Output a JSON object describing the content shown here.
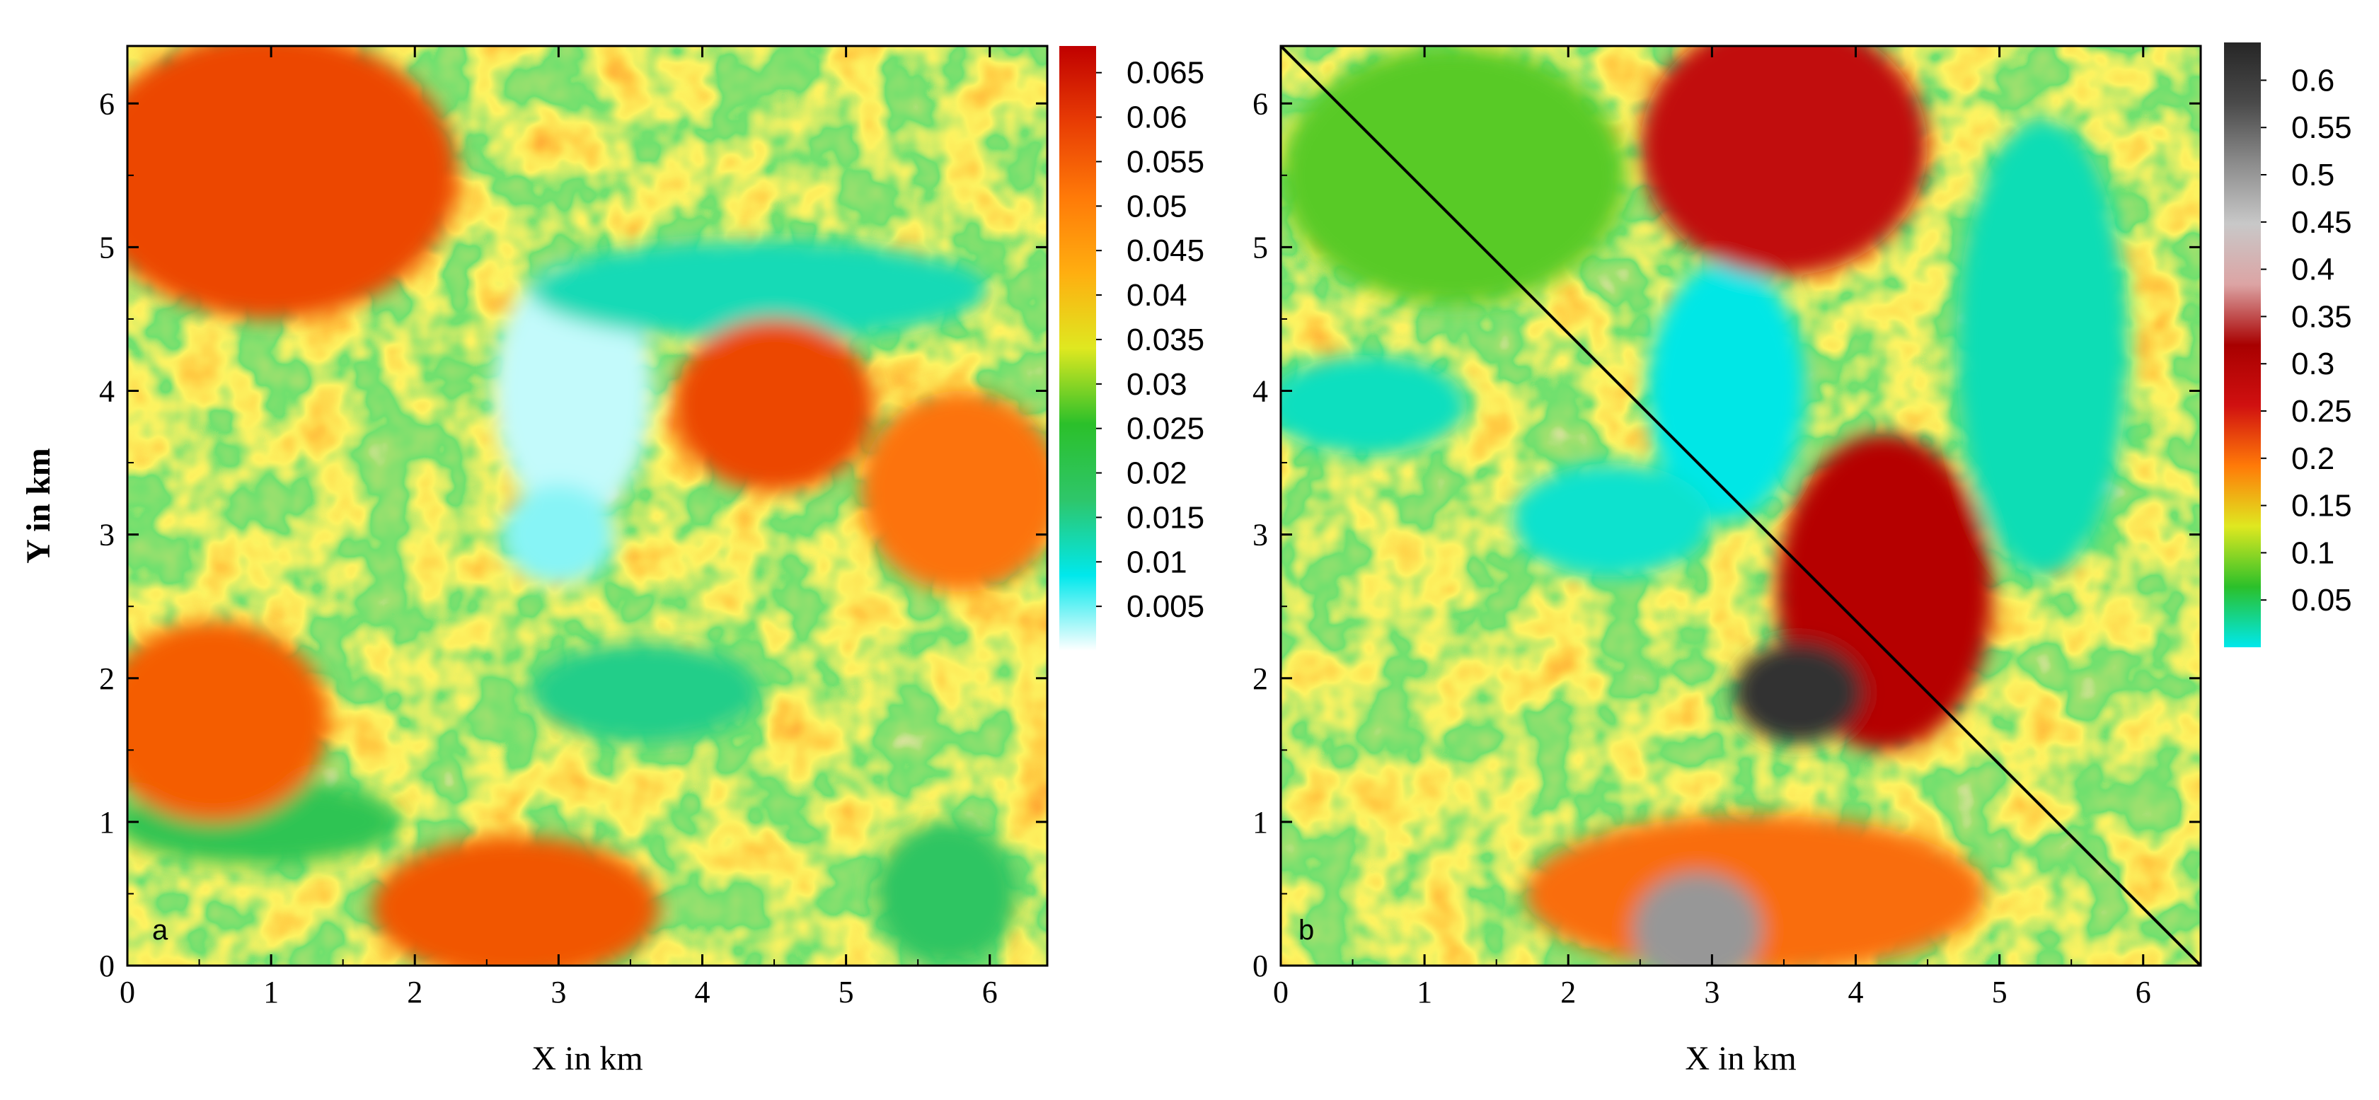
{
  "chart_data": [
    {
      "type": "heatmap",
      "panel_label": "a",
      "xlabel": "X in km",
      "ylabel": "Y in km",
      "xlim": [
        0,
        6.4
      ],
      "ylim": [
        0,
        6.4
      ],
      "x_ticks": [
        "0",
        "1",
        "2",
        "3",
        "4",
        "5",
        "6"
      ],
      "y_ticks": [
        "0",
        "1",
        "2",
        "3",
        "4",
        "5",
        "6"
      ],
      "colorbar": {
        "range": [
          0,
          0.068
        ],
        "tick_labels": [
          "0.065",
          "0.06",
          "0.055",
          "0.05",
          "0.045",
          "0.04",
          "0.035",
          "0.03",
          "0.025",
          "0.02",
          "0.015",
          "0.01",
          "0.005"
        ],
        "tick_values": [
          0.065,
          0.06,
          0.055,
          0.05,
          0.045,
          0.04,
          0.035,
          0.03,
          0.025,
          0.02,
          0.015,
          0.01,
          0.005
        ],
        "colors": [
          "#ffffff",
          "#00e8ec",
          "#2ec66a",
          "#2bc02a",
          "#dfe820",
          "#ffae10",
          "#ff7a08",
          "#e83c04",
          "#c00000"
        ]
      },
      "features": [
        {
          "kind": "low",
          "x": 3.1,
          "y": 4.0,
          "rx": 0.55,
          "ry": 0.9,
          "value": 0.002
        },
        {
          "kind": "low",
          "x": 3.0,
          "y": 3.0,
          "rx": 0.4,
          "ry": 0.35,
          "value": 0.004
        },
        {
          "kind": "low",
          "x": 4.4,
          "y": 4.7,
          "rx": 1.6,
          "ry": 0.35,
          "value": 0.012
        },
        {
          "kind": "low",
          "x": 3.6,
          "y": 1.9,
          "rx": 0.8,
          "ry": 0.35,
          "value": 0.015
        },
        {
          "kind": "low",
          "x": 0.9,
          "y": 1.0,
          "rx": 1.0,
          "ry": 0.3,
          "value": 0.02
        },
        {
          "kind": "low",
          "x": 5.7,
          "y": 0.5,
          "rx": 0.5,
          "ry": 0.5,
          "value": 0.018
        },
        {
          "kind": "high",
          "x": 1.0,
          "y": 5.5,
          "rx": 1.3,
          "ry": 1.0,
          "value": 0.058
        },
        {
          "kind": "high",
          "x": 4.5,
          "y": 3.9,
          "rx": 0.7,
          "ry": 0.6,
          "value": 0.058
        },
        {
          "kind": "high",
          "x": 0.6,
          "y": 1.7,
          "rx": 0.8,
          "ry": 0.7,
          "value": 0.055
        },
        {
          "kind": "high",
          "x": 2.7,
          "y": 0.4,
          "rx": 1.0,
          "ry": 0.5,
          "value": 0.056
        },
        {
          "kind": "high",
          "x": 5.8,
          "y": 3.3,
          "rx": 0.7,
          "ry": 0.7,
          "value": 0.052
        }
      ]
    },
    {
      "type": "heatmap",
      "panel_label": "b",
      "xlabel": "X in km",
      "ylabel": "",
      "xlim": [
        0,
        6.4
      ],
      "ylim": [
        0,
        6.4
      ],
      "x_ticks": [
        "0",
        "1",
        "2",
        "3",
        "4",
        "5",
        "6"
      ],
      "y_ticks": [
        "0",
        "1",
        "2",
        "3",
        "4",
        "5",
        "6"
      ],
      "diagonal_line": {
        "from": [
          0,
          6.4
        ],
        "to": [
          6.4,
          0
        ],
        "color": "#000000"
      },
      "colorbar": {
        "range": [
          0,
          0.64
        ],
        "tick_labels": [
          "0.6",
          "0.55",
          "0.5",
          "0.45",
          "0.4",
          "0.35",
          "0.3",
          "0.25",
          "0.2",
          "0.15",
          "0.1",
          "0.05"
        ],
        "tick_values": [
          0.6,
          0.55,
          0.5,
          0.45,
          0.4,
          0.35,
          0.3,
          0.25,
          0.2,
          0.15,
          0.1,
          0.05
        ],
        "colors": [
          "#00e8ec",
          "#2bc02a",
          "#dfe820",
          "#ff7a08",
          "#d01010",
          "#a80000",
          "#dca4a4",
          "#c8c8c8",
          "#8c8c8c",
          "#4a4a4a",
          "#262626"
        ]
      },
      "features": [
        {
          "kind": "low",
          "x": 3.1,
          "y": 4.0,
          "rx": 0.55,
          "ry": 0.9,
          "value": 0.002
        },
        {
          "kind": "low",
          "x": 2.3,
          "y": 3.1,
          "rx": 0.7,
          "ry": 0.4,
          "value": 0.01
        },
        {
          "kind": "low",
          "x": 0.6,
          "y": 3.9,
          "rx": 0.7,
          "ry": 0.35,
          "value": 0.015
        },
        {
          "kind": "low",
          "x": 5.3,
          "y": 4.3,
          "rx": 0.6,
          "ry": 1.6,
          "value": 0.018
        },
        {
          "kind": "high",
          "x": 1.2,
          "y": 5.5,
          "rx": 1.2,
          "ry": 0.9,
          "value": 0.08
        },
        {
          "kind": "mining",
          "x": 3.5,
          "y": 5.7,
          "rx": 1.0,
          "ry": 0.9,
          "value": 0.28
        },
        {
          "kind": "mining",
          "x": 4.2,
          "y": 2.6,
          "rx": 0.75,
          "ry": 1.1,
          "value": 0.3
        },
        {
          "kind": "mining",
          "x": 3.6,
          "y": 1.9,
          "rx": 0.45,
          "ry": 0.35,
          "value": 0.62
        },
        {
          "kind": "mining",
          "x": 3.3,
          "y": 0.5,
          "rx": 1.6,
          "ry": 0.55,
          "value": 0.2
        },
        {
          "kind": "mining",
          "x": 2.9,
          "y": 0.25,
          "rx": 0.45,
          "ry": 0.4,
          "value": 0.5
        }
      ]
    }
  ]
}
